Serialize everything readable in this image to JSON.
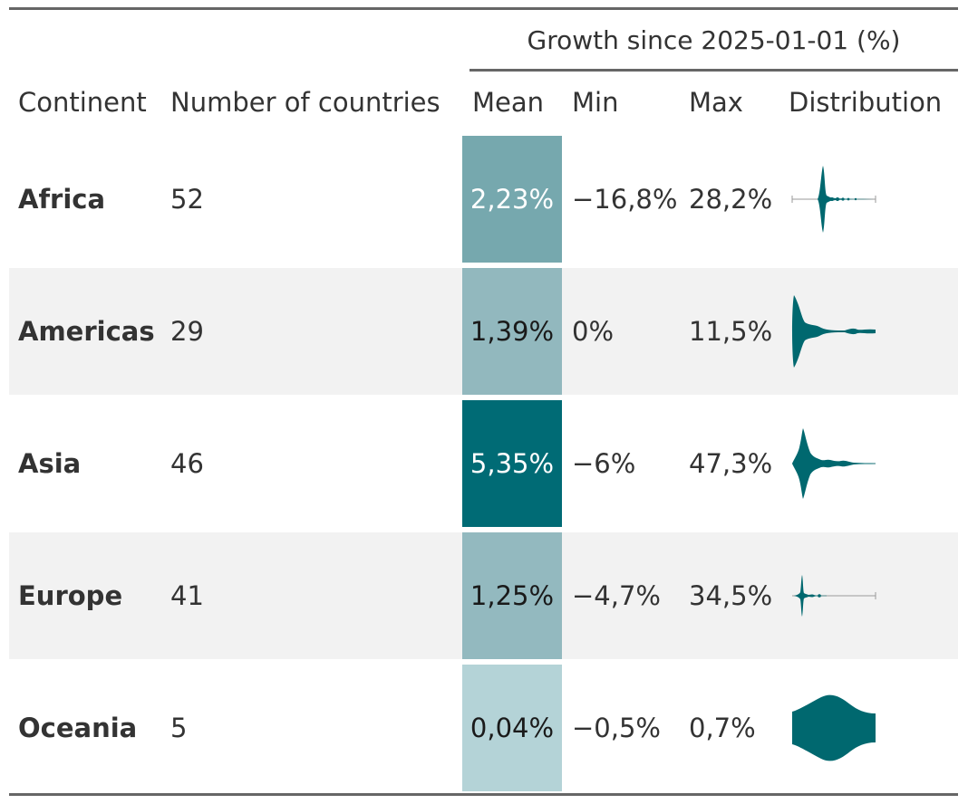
{
  "spanner_label": "Growth since 2025-01-01 (%)",
  "headers": {
    "continent": "Continent",
    "countries": "Number of countries",
    "mean": "Mean",
    "min": "Min",
    "max": "Max",
    "distribution": "Distribution"
  },
  "colors": {
    "rule": "#666666",
    "shaded_row": "#f2f2f2",
    "violin_fill": "#00686f",
    "text": "#333333"
  },
  "rows": [
    {
      "continent": "Africa",
      "countries": "52",
      "mean": "2,23%",
      "min": "−16,8%",
      "max": "28,2%",
      "mean_fill": "#76a8ae",
      "mean_text": "#ffffff"
    },
    {
      "continent": "Americas",
      "countries": "29",
      "mean": "1,39%",
      "min": "0%",
      "max": "11,5%",
      "mean_fill": "#92b8be",
      "mean_text": "#1a1a1a"
    },
    {
      "continent": "Asia",
      "countries": "46",
      "mean": "5,35%",
      "min": "−6%",
      "max": "47,3%",
      "mean_fill": "#006b75",
      "mean_text": "#ffffff"
    },
    {
      "continent": "Europe",
      "countries": "41",
      "mean": "1,25%",
      "min": "−4,7%",
      "max": "34,5%",
      "mean_fill": "#93b9bf",
      "mean_text": "#1a1a1a"
    },
    {
      "continent": "Oceania",
      "countries": "5",
      "mean": "0,04%",
      "min": "−0,5%",
      "max": "0,7%",
      "mean_fill": "#b4d3d7",
      "mean_text": "#1a1a1a"
    }
  ]
}
